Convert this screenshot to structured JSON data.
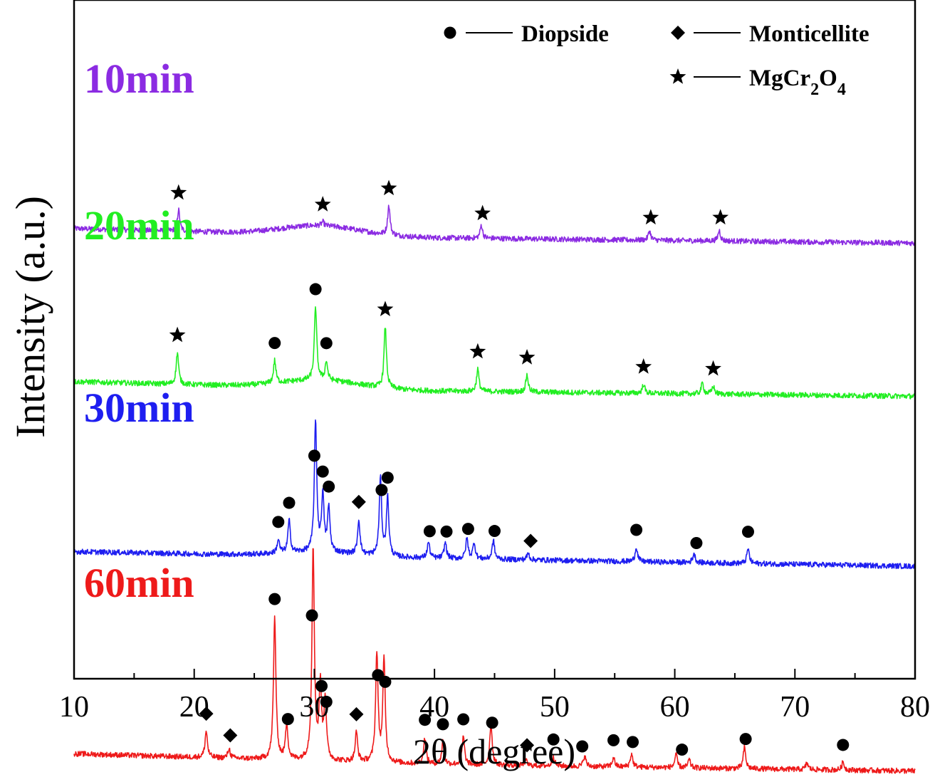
{
  "chart_data": {
    "type": "line",
    "xlabel": "2θ (degree)",
    "ylabel": "Intensity (a.u.)",
    "xlim": [
      10,
      80
    ],
    "xticks": [
      10,
      20,
      30,
      40,
      50,
      60,
      70,
      80
    ],
    "y_tick_labels": false,
    "grid": false,
    "legend": {
      "placement": "top-right",
      "entries": [
        {
          "marker": "circle",
          "name_parts": [
            {
              "text": "Diopside"
            }
          ]
        },
        {
          "marker": "diamond",
          "name_parts": [
            {
              "text": "Monticellite"
            }
          ]
        },
        {
          "marker": "star",
          "name_parts": [
            {
              "text": "MgCr"
            },
            {
              "text": "2",
              "sub": true
            },
            {
              "text": "O"
            },
            {
              "text": "4",
              "sub": true
            }
          ]
        }
      ]
    },
    "series": [
      {
        "name": "10min",
        "color": "#8B2BE2",
        "baseline": [
          [
            10,
            0.37
          ],
          [
            40,
            0.3
          ],
          [
            80,
            0.26
          ]
        ],
        "humps": [
          {
            "x": 30.5,
            "h": 0.07,
            "w": 4.5
          }
        ],
        "peaks": [
          [
            18.7,
            0.16
          ],
          [
            30.7,
            0.03
          ],
          [
            36.2,
            0.22
          ],
          [
            43.9,
            0.1
          ],
          [
            57.9,
            0.07
          ],
          [
            63.7,
            0.08
          ]
        ],
        "markers": [
          {
            "x": 18.7,
            "type": "star"
          },
          {
            "x": 30.7,
            "type": "star"
          },
          {
            "x": 36.2,
            "type": "star"
          },
          {
            "x": 44.0,
            "type": "star"
          },
          {
            "x": 58.0,
            "type": "star"
          },
          {
            "x": 63.8,
            "type": "star"
          }
        ]
      },
      {
        "name": "20min",
        "color": "#22EE22",
        "baseline": [
          [
            10,
            0.37
          ],
          [
            40,
            0.3
          ],
          [
            80,
            0.26
          ]
        ],
        "humps": [
          {
            "x": 30.5,
            "h": 0.06,
            "w": 4.5
          }
        ],
        "peaks": [
          [
            18.6,
            0.24
          ],
          [
            26.7,
            0.17
          ],
          [
            30.1,
            0.55
          ],
          [
            31.0,
            0.14
          ],
          [
            35.9,
            0.46
          ],
          [
            43.6,
            0.17
          ],
          [
            47.7,
            0.13
          ],
          [
            57.4,
            0.07
          ],
          [
            62.3,
            0.08
          ],
          [
            63.2,
            0.06
          ]
        ],
        "markers": [
          {
            "x": 18.6,
            "type": "star"
          },
          {
            "x": 26.7,
            "type": "circle"
          },
          {
            "x": 30.1,
            "type": "circle"
          },
          {
            "x": 31.0,
            "type": "circle"
          },
          {
            "x": 35.9,
            "type": "star"
          },
          {
            "x": 43.6,
            "type": "star"
          },
          {
            "x": 47.7,
            "type": "star"
          },
          {
            "x": 57.4,
            "type": "star"
          },
          {
            "x": 63.2,
            "type": "star"
          }
        ]
      },
      {
        "name": "30min",
        "color": "#1E1EF0",
        "baseline": [
          [
            10,
            0.35
          ],
          [
            40,
            0.3
          ],
          [
            80,
            0.24
          ]
        ],
        "humps": [
          {
            "x": 30.5,
            "h": 0.03,
            "w": 4.5
          }
        ],
        "peaks": [
          [
            27.0,
            0.1
          ],
          [
            27.9,
            0.24
          ],
          [
            30.1,
            0.98
          ],
          [
            30.7,
            0.42
          ],
          [
            31.2,
            0.33
          ],
          [
            33.7,
            0.26
          ],
          [
            35.5,
            0.58
          ],
          [
            36.1,
            0.44
          ],
          [
            39.5,
            0.12
          ],
          [
            40.9,
            0.12
          ],
          [
            42.7,
            0.15
          ],
          [
            43.3,
            0.12
          ],
          [
            44.9,
            0.14
          ],
          [
            47.8,
            0.05
          ],
          [
            56.8,
            0.11
          ],
          [
            61.6,
            0.07
          ],
          [
            66.1,
            0.11
          ]
        ],
        "markers": [
          {
            "x": 27.0,
            "type": "circle"
          },
          {
            "x": 27.9,
            "type": "circle"
          },
          {
            "x": 30.0,
            "type": "circle"
          },
          {
            "x": 30.7,
            "type": "circle"
          },
          {
            "x": 31.2,
            "type": "circle"
          },
          {
            "x": 33.7,
            "type": "diamond"
          },
          {
            "x": 35.6,
            "type": "circle"
          },
          {
            "x": 36.1,
            "type": "circle"
          },
          {
            "x": 39.6,
            "type": "circle"
          },
          {
            "x": 41.0,
            "type": "circle"
          },
          {
            "x": 42.8,
            "type": "circle"
          },
          {
            "x": 45.0,
            "type": "circle"
          },
          {
            "x": 48.0,
            "type": "diamond"
          },
          {
            "x": 56.8,
            "type": "circle"
          },
          {
            "x": 61.8,
            "type": "circle"
          },
          {
            "x": 66.1,
            "type": "circle"
          }
        ]
      },
      {
        "name": "60min",
        "color": "#EE1A1A",
        "baseline": [
          [
            10,
            0.33
          ],
          [
            40,
            0.25
          ],
          [
            80,
            0.2
          ]
        ],
        "humps": [],
        "peaks": [
          [
            21.0,
            0.2
          ],
          [
            22.9,
            0.07
          ],
          [
            26.7,
            1.07
          ],
          [
            27.7,
            0.27
          ],
          [
            29.9,
            1.59
          ],
          [
            30.5,
            0.55
          ],
          [
            30.9,
            0.45
          ],
          [
            33.5,
            0.22
          ],
          [
            35.2,
            0.82
          ],
          [
            35.8,
            0.77
          ],
          [
            39.2,
            0.2
          ],
          [
            40.7,
            0.17
          ],
          [
            42.4,
            0.21
          ],
          [
            44.7,
            0.32
          ],
          [
            47.6,
            0.04
          ],
          [
            49.9,
            0.07
          ],
          [
            52.5,
            0.08
          ],
          [
            54.9,
            0.07
          ],
          [
            56.4,
            0.1
          ],
          [
            60.1,
            0.1
          ],
          [
            61.2,
            0.06
          ],
          [
            65.8,
            0.16
          ],
          [
            71.0,
            0.05
          ],
          [
            74.0,
            0.06
          ]
        ],
        "markers": [
          {
            "x": 21.0,
            "type": "diamond"
          },
          {
            "x": 23.0,
            "type": "diamond"
          },
          {
            "x": 26.7,
            "type": "circle"
          },
          {
            "x": 27.8,
            "type": "circle"
          },
          {
            "x": 29.8,
            "type": "circle"
          },
          {
            "x": 30.6,
            "type": "circle"
          },
          {
            "x": 31.0,
            "type": "circle"
          },
          {
            "x": 33.5,
            "type": "diamond"
          },
          {
            "x": 35.3,
            "type": "circle"
          },
          {
            "x": 35.9,
            "type": "circle"
          },
          {
            "x": 39.2,
            "type": "circle"
          },
          {
            "x": 40.7,
            "type": "circle"
          },
          {
            "x": 42.4,
            "type": "circle"
          },
          {
            "x": 44.8,
            "type": "circle"
          },
          {
            "x": 47.7,
            "type": "diamond"
          },
          {
            "x": 49.9,
            "type": "circle"
          },
          {
            "x": 52.3,
            "type": "circle"
          },
          {
            "x": 54.9,
            "type": "circle"
          },
          {
            "x": 56.5,
            "type": "circle"
          },
          {
            "x": 60.6,
            "type": "circle"
          },
          {
            "x": 65.9,
            "type": "circle"
          },
          {
            "x": 74.0,
            "type": "circle"
          }
        ]
      }
    ]
  }
}
